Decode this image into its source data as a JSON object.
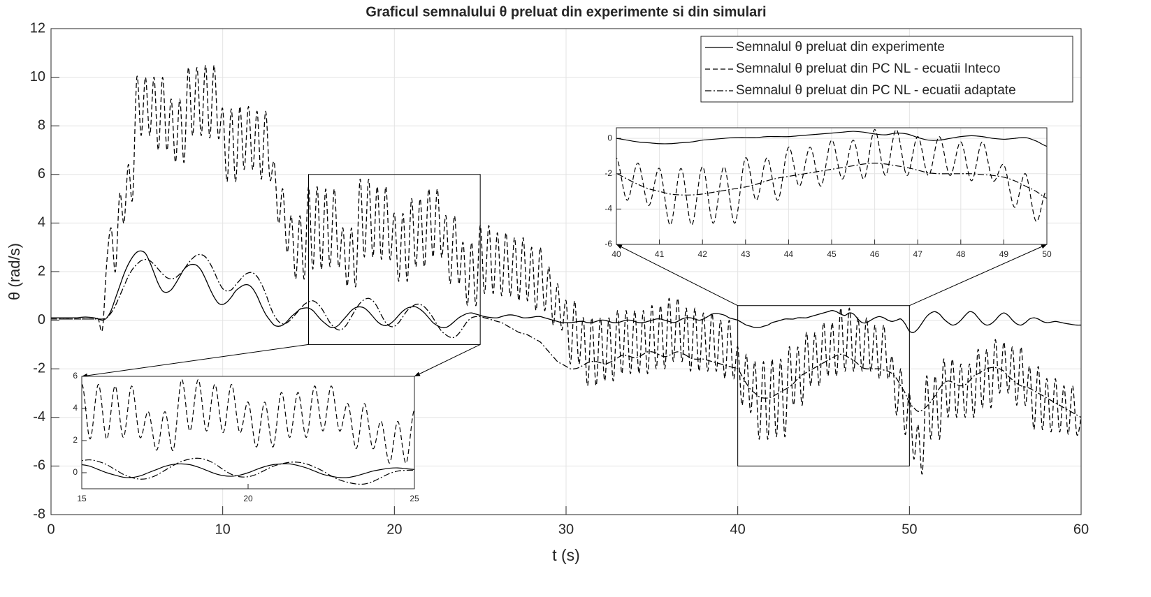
{
  "chart_data": {
    "type": "line",
    "title": "Graficul semnalului θ preluat din experimente si din simulari",
    "xlabel": "t (s)",
    "ylabel": "θ (rad/s)",
    "xlim": [
      0,
      60
    ],
    "xticks": [
      0,
      10,
      20,
      30,
      40,
      50,
      60
    ],
    "ylim": [
      -8,
      12
    ],
    "yticks": [
      -8,
      -6,
      -4,
      -2,
      0,
      2,
      4,
      6,
      8,
      10,
      12
    ],
    "grid": true,
    "legend": "upper right",
    "x": [
      0,
      0.25,
      0.5,
      0.75,
      1,
      1.25,
      1.5,
      1.75,
      2,
      2.25,
      2.5,
      2.75,
      3,
      3.25,
      3.5,
      3.75,
      4,
      4.25,
      4.5,
      4.75,
      5,
      5.25,
      5.5,
      5.75,
      6,
      6.25,
      6.5,
      6.75,
      7,
      7.25,
      7.5,
      7.75,
      8,
      8.25,
      8.5,
      8.75,
      9,
      9.25,
      9.5,
      9.75,
      10,
      10.25,
      10.5,
      10.75,
      11,
      11.25,
      11.5,
      11.75,
      12,
      12.25,
      12.5,
      12.75,
      13,
      13.25,
      13.5,
      13.75,
      14,
      14.25,
      14.5,
      14.75,
      15,
      15.25,
      15.5,
      15.75,
      16,
      16.25,
      16.5,
      16.75,
      17,
      17.25,
      17.5,
      17.75,
      18,
      18.25,
      18.5,
      18.75,
      19,
      19.25,
      19.5,
      19.75,
      20,
      20.25,
      20.5,
      20.75,
      21,
      21.25,
      21.5,
      21.75,
      22,
      22.25,
      22.5,
      22.75,
      23,
      23.25,
      23.5,
      23.75,
      24,
      24.25,
      24.5,
      24.75,
      25,
      25.25,
      25.5,
      25.75,
      26,
      26.25,
      26.5,
      26.75,
      27,
      27.25,
      27.5,
      27.75,
      28,
      28.25,
      28.5,
      28.75,
      29,
      29.25,
      29.5,
      29.75,
      30,
      30.25,
      30.5,
      30.75,
      31,
      31.25,
      31.5,
      31.75,
      32,
      32.25,
      32.5,
      32.75,
      33,
      33.25,
      33.5,
      33.75,
      34,
      34.25,
      34.5,
      34.75,
      35,
      35.25,
      35.5,
      35.75,
      36,
      36.25,
      36.5,
      36.75,
      37,
      37.25,
      37.5,
      37.75,
      38,
      38.25,
      38.5,
      38.75,
      39,
      39.25,
      39.5,
      39.75,
      40,
      40.25,
      40.5,
      40.75,
      41,
      41.25,
      41.5,
      41.75,
      42,
      42.25,
      42.5,
      42.75,
      43,
      43.25,
      43.5,
      43.75,
      44,
      44.25,
      44.5,
      44.75,
      45,
      45.25,
      45.5,
      45.75,
      46,
      46.25,
      46.5,
      46.75,
      47,
      47.25,
      47.5,
      47.75,
      48,
      48.25,
      48.5,
      48.75,
      49,
      49.25,
      49.5,
      49.75,
      50,
      50.25,
      50.5,
      50.75,
      51,
      51.25,
      51.5,
      51.75,
      52,
      52.25,
      52.5,
      52.75,
      53,
      53.25,
      53.5,
      53.75,
      54,
      54.25,
      54.5,
      54.75,
      55,
      55.25,
      55.5,
      55.75,
      56,
      56.25,
      56.5,
      56.75,
      57,
      57.25,
      57.5,
      57.75,
      58,
      58.25,
      58.5,
      58.75,
      59,
      59.25,
      59.5,
      59.75,
      60
    ],
    "series": [
      {
        "name": "Semnalul θ preluat din experimente",
        "color": "#000000",
        "style": "solid",
        "values": [
          0.1,
          0.1,
          0.1,
          0.1,
          0.1,
          0.1,
          0.1,
          0.12,
          0.13,
          0.12,
          0.1,
          0.05,
          0.0,
          0.1,
          0.4,
          0.9,
          1.4,
          1.9,
          2.3,
          2.6,
          2.8,
          2.85,
          2.75,
          2.4,
          1.95,
          1.5,
          1.2,
          1.15,
          1.25,
          1.5,
          1.8,
          2.1,
          2.25,
          2.3,
          2.25,
          2.05,
          1.7,
          1.3,
          0.95,
          0.7,
          0.65,
          0.75,
          0.95,
          1.2,
          1.35,
          1.45,
          1.45,
          1.3,
          1.0,
          0.6,
          0.25,
          0.0,
          -0.2,
          -0.25,
          -0.2,
          -0.05,
          0.15,
          0.3,
          0.45,
          0.5,
          0.5,
          0.4,
          0.2,
          0.0,
          -0.15,
          -0.28,
          -0.3,
          -0.2,
          0.0,
          0.2,
          0.4,
          0.52,
          0.55,
          0.5,
          0.35,
          0.15,
          -0.05,
          -0.18,
          -0.22,
          -0.15,
          0.0,
          0.2,
          0.38,
          0.5,
          0.55,
          0.55,
          0.45,
          0.3,
          0.1,
          -0.1,
          -0.22,
          -0.3,
          -0.3,
          -0.2,
          -0.05,
          0.1,
          0.2,
          0.28,
          0.3,
          0.25,
          0.2,
          0.15,
          0.12,
          0.1,
          0.1,
          0.15,
          0.2,
          0.22,
          0.2,
          0.15,
          0.1,
          0.1,
          0.12,
          0.15,
          0.15,
          0.1,
          0.05,
          0.0,
          -0.05,
          -0.1,
          -0.1,
          -0.1,
          -0.08,
          -0.05,
          -0.05,
          -0.1,
          -0.1,
          -0.05,
          0.0,
          0.0,
          -0.05,
          -0.1,
          -0.1,
          -0.05,
          0.0,
          0.0,
          -0.05,
          -0.1,
          -0.1,
          -0.05,
          0.0,
          0.05,
          0.05,
          0.0,
          -0.05,
          -0.1,
          -0.05,
          0.05,
          0.1,
          0.1,
          0.05,
          0.0,
          0.05,
          0.15,
          0.25,
          0.28,
          0.25,
          0.2,
          0.1,
          0.05,
          0.0,
          -0.1,
          -0.2,
          -0.25,
          -0.3,
          -0.3,
          -0.25,
          -0.2,
          -0.1,
          -0.05,
          0.0,
          0.05,
          0.05,
          0.05,
          0.1,
          0.1,
          0.1,
          0.15,
          0.2,
          0.25,
          0.3,
          0.35,
          0.4,
          0.35,
          0.25,
          0.2,
          0.3,
          0.25,
          0.05,
          -0.1,
          -0.1,
          0.0,
          0.1,
          0.15,
          0.1,
          0.0,
          -0.05,
          0.0,
          0.05,
          -0.15,
          -0.45,
          -0.5,
          -0.35,
          -0.1,
          0.15,
          0.3,
          0.35,
          0.25,
          0.05,
          -0.1,
          -0.2,
          -0.15,
          0.0,
          0.2,
          0.35,
          0.3,
          0.1,
          -0.1,
          -0.2,
          -0.15,
          0.0,
          0.2,
          0.3,
          0.2,
          0.0,
          -0.15,
          -0.2,
          -0.1,
          0.05,
          0.1,
          0.05,
          -0.05,
          -0.1,
          -0.08,
          -0.05,
          -0.08,
          -0.12,
          -0.15,
          -0.18,
          -0.2,
          -0.2
        ]
      },
      {
        "name": "Semnalul θ preluat din PC NL - ecuatii Inteco",
        "color": "#000000",
        "style": "dashed",
        "values": [
          0.05,
          0.05,
          0.05,
          0.05,
          0.05,
          0.05,
          0.05,
          0.05,
          0.05,
          0.05,
          0.05,
          0.05,
          -0.35,
          2.4,
          3.8,
          2.0,
          5.2,
          4.0,
          6.4,
          5.0,
          10.0,
          7.6,
          10.0,
          7.6,
          10.0,
          7.0,
          10.0,
          7.0,
          9.1,
          6.5,
          9.1,
          6.5,
          10.4,
          7.6,
          10.4,
          7.6,
          10.5,
          7.5,
          10.5,
          7.5,
          8.7,
          5.7,
          8.7,
          5.7,
          8.8,
          6.2,
          8.8,
          6.2,
          8.6,
          5.8,
          8.6,
          5.8,
          6.5,
          4.0,
          5.4,
          2.8,
          4.3,
          1.7,
          4.3,
          1.7,
          5.5,
          2.1,
          5.5,
          2.1,
          5.4,
          2.2,
          5.4,
          2.2,
          3.8,
          1.4,
          3.8,
          1.4,
          5.8,
          2.6,
          5.8,
          2.6,
          5.5,
          2.5,
          5.5,
          2.5,
          4.4,
          1.6,
          4.4,
          1.6,
          5.0,
          2.2,
          5.0,
          2.2,
          5.4,
          2.6,
          5.4,
          2.6,
          4.3,
          1.5,
          4.3,
          1.5,
          3.2,
          0.6,
          3.2,
          0.6,
          3.9,
          1.1,
          3.9,
          1.1,
          3.6,
          1.0,
          3.6,
          1.0,
          3.4,
          0.8,
          3.4,
          0.8,
          3.0,
          0.4,
          3.0,
          0.4,
          2.2,
          -0.2,
          1.5,
          -0.4,
          0.8,
          -1.8,
          0.8,
          -1.8,
          0.1,
          -2.7,
          0.1,
          -2.7,
          0.1,
          -2.5,
          0.1,
          -2.5,
          0.4,
          -2.2,
          0.4,
          -2.2,
          0.4,
          -2.2,
          0.4,
          -2.2,
          0.6,
          -2.0,
          0.6,
          -2.0,
          0.9,
          -1.7,
          0.9,
          -1.7,
          0.5,
          -2.1,
          0.5,
          -2.1,
          0.3,
          -2.1,
          0.3,
          -2.1,
          0.0,
          -2.4,
          0.0,
          -2.4,
          -1.1,
          -3.5,
          -1.4,
          -3.8,
          -1.7,
          -4.9,
          -1.7,
          -4.9,
          -1.6,
          -4.8,
          -1.6,
          -4.8,
          -1.1,
          -3.5,
          -1.1,
          -3.5,
          -0.5,
          -2.7,
          -0.5,
          -2.7,
          -0.1,
          -2.3,
          -0.1,
          -2.3,
          0.5,
          -2.1,
          0.5,
          -2.1,
          0.1,
          -2.1,
          0.1,
          -2.1,
          -0.2,
          -2.4,
          -0.2,
          -2.4,
          -1.5,
          -3.9,
          -2.0,
          -4.7,
          -3.0,
          -5.7,
          -4.3,
          -6.3,
          -2.3,
          -4.9,
          -2.3,
          -4.9,
          -1.6,
          -4.0,
          -1.6,
          -4.0,
          -1.8,
          -4.0,
          -1.8,
          -4.0,
          -1.2,
          -3.6,
          -1.2,
          -3.6,
          -0.8,
          -3.0,
          -0.9,
          -3.0,
          -1.1,
          -3.5,
          -1.1,
          -3.5,
          -1.9,
          -4.5,
          -1.9,
          -4.5,
          -2.4,
          -4.6,
          -2.4,
          -4.6,
          -2.7,
          -4.7,
          -2.7,
          -4.7,
          -4.0
        ]
      },
      {
        "name": "Semnalul θ preluat din PC NL - ecuatii adaptate",
        "color": "#000000",
        "style": "dashdot",
        "values": [
          0.05,
          0.05,
          0.05,
          0.05,
          0.05,
          0.05,
          0.05,
          0.05,
          0.05,
          0.05,
          0.05,
          0.05,
          0.05,
          0.1,
          0.3,
          0.6,
          1.0,
          1.4,
          1.8,
          2.1,
          2.3,
          2.45,
          2.5,
          2.45,
          2.3,
          2.1,
          1.9,
          1.75,
          1.7,
          1.75,
          1.9,
          2.1,
          2.35,
          2.55,
          2.68,
          2.7,
          2.6,
          2.35,
          2.0,
          1.6,
          1.3,
          1.2,
          1.25,
          1.45,
          1.65,
          1.85,
          1.95,
          1.95,
          1.8,
          1.5,
          1.1,
          0.6,
          0.2,
          -0.05,
          -0.15,
          -0.1,
          0.05,
          0.25,
          0.45,
          0.65,
          0.75,
          0.8,
          0.7,
          0.5,
          0.2,
          -0.1,
          -0.3,
          -0.4,
          -0.35,
          -0.15,
          0.15,
          0.45,
          0.7,
          0.85,
          0.9,
          0.8,
          0.55,
          0.2,
          -0.1,
          -0.25,
          -0.25,
          -0.1,
          0.15,
          0.4,
          0.55,
          0.65,
          0.65,
          0.55,
          0.35,
          0.1,
          -0.2,
          -0.45,
          -0.6,
          -0.7,
          -0.7,
          -0.55,
          -0.3,
          -0.05,
          0.1,
          0.15,
          0.15,
          0.1,
          0.05,
          0.0,
          -0.05,
          -0.1,
          -0.2,
          -0.3,
          -0.4,
          -0.5,
          -0.55,
          -0.6,
          -0.7,
          -0.8,
          -0.9,
          -1.1,
          -1.3,
          -1.5,
          -1.7,
          -1.8,
          -1.9,
          -2.0,
          -2.0,
          -1.95,
          -1.85,
          -1.75,
          -1.7,
          -1.7,
          -1.75,
          -1.8,
          -1.75,
          -1.65,
          -1.55,
          -1.45,
          -1.45,
          -1.5,
          -1.55,
          -1.5,
          -1.4,
          -1.3,
          -1.3,
          -1.35,
          -1.45,
          -1.5,
          -1.45,
          -1.35,
          -1.3,
          -1.35,
          -1.45,
          -1.55,
          -1.6,
          -1.6,
          -1.6,
          -1.65,
          -1.7,
          -1.75,
          -1.8,
          -1.85,
          -1.9,
          -1.95,
          -2.0,
          -2.3,
          -2.6,
          -2.85,
          -3.0,
          -3.15,
          -3.2,
          -3.2,
          -3.15,
          -3.05,
          -2.95,
          -2.85,
          -2.75,
          -2.6,
          -2.4,
          -2.25,
          -2.15,
          -2.05,
          -1.95,
          -1.85,
          -1.75,
          -1.65,
          -1.55,
          -1.45,
          -1.4,
          -1.45,
          -1.55,
          -1.65,
          -1.8,
          -1.95,
          -2.0,
          -2.0,
          -2.0,
          -2.0,
          -2.05,
          -2.1,
          -2.2,
          -2.4,
          -2.7,
          -3.0,
          -3.4,
          -3.6,
          -3.75,
          -3.7,
          -3.55,
          -3.35,
          -3.1,
          -2.8,
          -2.6,
          -2.5,
          -2.55,
          -2.65,
          -2.7,
          -2.65,
          -2.5,
          -2.3,
          -2.2,
          -2.1,
          -2.0,
          -1.95,
          -1.95,
          -2.0,
          -2.1,
          -2.3,
          -2.45,
          -2.6,
          -2.7,
          -2.75,
          -2.8,
          -2.9,
          -3.0,
          -3.1,
          -3.2,
          -3.3,
          -3.4,
          -3.5,
          -3.6,
          -3.7,
          -3.8,
          -3.9,
          -4.0
        ]
      }
    ],
    "insets": [
      {
        "xlim": [
          15,
          25
        ],
        "ylim": [
          -1,
          6
        ],
        "xticks": [
          15,
          20,
          25
        ],
        "yticks": [
          0,
          2,
          4,
          6
        ],
        "grid": false
      },
      {
        "xlim": [
          40,
          50
        ],
        "ylim": [
          -6,
          0.6
        ],
        "xticks": [
          40,
          41,
          42,
          43,
          44,
          45,
          46,
          47,
          48,
          49,
          50
        ],
        "yticks": [
          -6,
          -4,
          -2,
          0
        ],
        "grid": true
      }
    ]
  }
}
